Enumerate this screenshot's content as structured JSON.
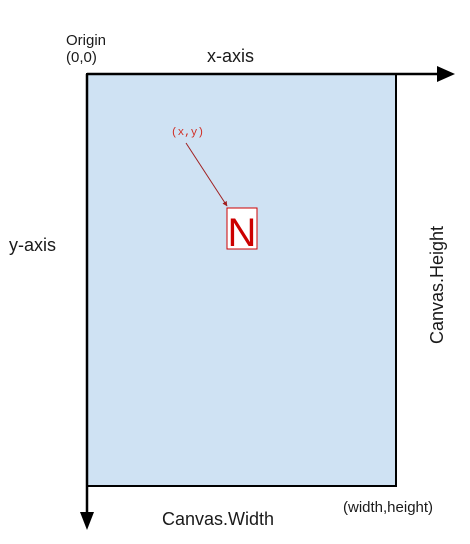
{
  "origin": {
    "word": "Origin",
    "coord": "(0,0)"
  },
  "axes": {
    "x_label": "x-axis",
    "y_label": "y-axis"
  },
  "canvas": {
    "width_label": "Canvas.Width",
    "height_label": "Canvas.Height",
    "corner_label": "(width,height)",
    "fill_color": "#cfe2f3",
    "border_color": "#000000"
  },
  "point": {
    "label": "(x,y)",
    "glyph": "N",
    "color": "#cc0000"
  }
}
